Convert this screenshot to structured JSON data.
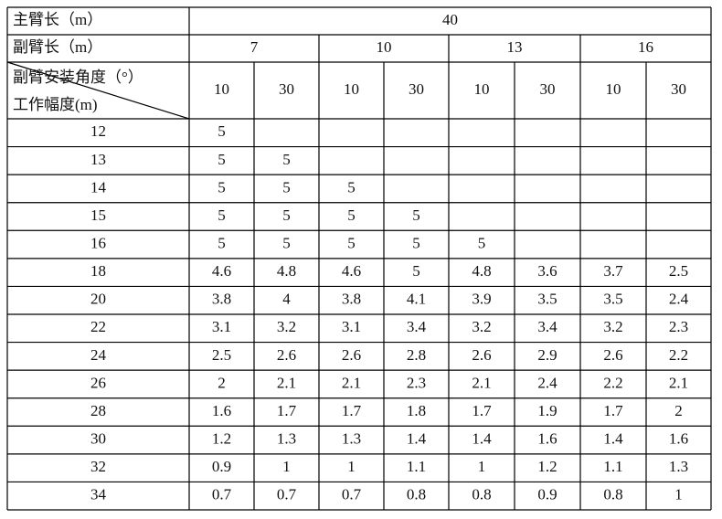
{
  "table": {
    "header": {
      "main_boom_label": "主臂长（m）",
      "main_boom_value": "40",
      "jib_label": "副臂长（m）",
      "jib_lengths": [
        "7",
        "10",
        "13",
        "16"
      ],
      "angle_label": "副臂安装角度（°）",
      "radius_label": "工作幅度(m)",
      "angles": [
        "10",
        "30",
        "10",
        "30",
        "10",
        "30",
        "10",
        "30"
      ]
    },
    "rows": [
      [
        "12",
        "5",
        null,
        null,
        null,
        null,
        null,
        null,
        null
      ],
      [
        "13",
        "5",
        "5",
        null,
        null,
        null,
        null,
        null,
        null
      ],
      [
        "14",
        "5",
        "5",
        "5",
        null,
        null,
        null,
        null,
        null
      ],
      [
        "15",
        "5",
        "5",
        "5",
        "5",
        null,
        null,
        null,
        null
      ],
      [
        "16",
        "5",
        "5",
        "5",
        "5",
        "5",
        null,
        null,
        null
      ],
      [
        "18",
        "4.6",
        "4.8",
        "4.6",
        "5",
        "4.8",
        "3.6",
        "3.7",
        "2.5"
      ],
      [
        "20",
        "3.8",
        "4",
        "3.8",
        "4.1",
        "3.9",
        "3.5",
        "3.5",
        "2.4"
      ],
      [
        "22",
        "3.1",
        "3.2",
        "3.1",
        "3.4",
        "3.2",
        "3.4",
        "3.2",
        "2.3"
      ],
      [
        "24",
        "2.5",
        "2.6",
        "2.6",
        "2.8",
        "2.6",
        "2.9",
        "2.6",
        "2.2"
      ],
      [
        "26",
        "2",
        "2.1",
        "2.1",
        "2.3",
        "2.1",
        "2.4",
        "2.2",
        "2.1"
      ],
      [
        "28",
        "1.6",
        "1.7",
        "1.7",
        "1.8",
        "1.7",
        "1.9",
        "1.7",
        "2"
      ],
      [
        "30",
        "1.2",
        "1.3",
        "1.3",
        "1.4",
        "1.4",
        "1.6",
        "1.4",
        "1.6"
      ],
      [
        "32",
        "0.9",
        "1",
        "1",
        "1.1",
        "1",
        "1.2",
        "1.1",
        "1.3"
      ],
      [
        "34",
        "0.7",
        "0.7",
        "0.7",
        "0.8",
        "0.8",
        "0.9",
        "0.8",
        "1"
      ]
    ]
  }
}
